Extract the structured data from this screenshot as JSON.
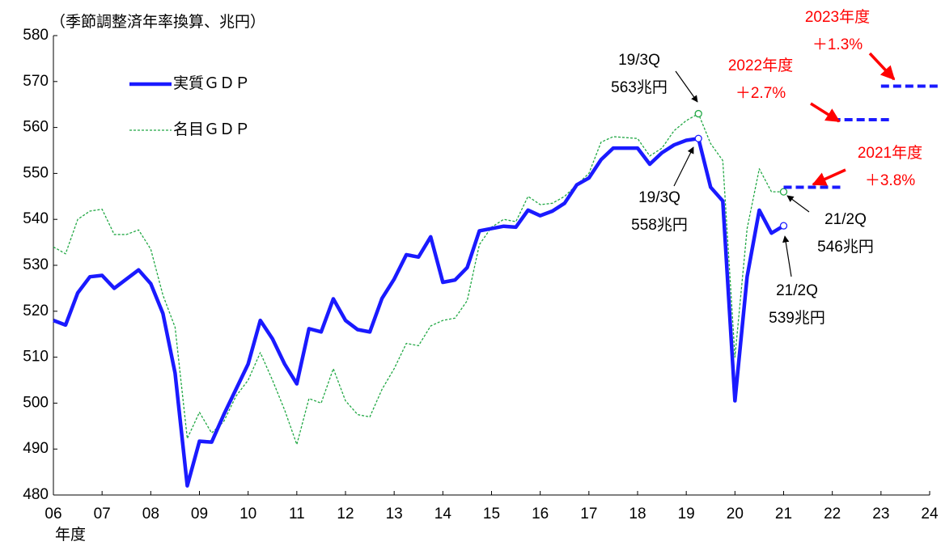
{
  "chart_data": {
    "type": "line",
    "y_label": "（季節調整済年率換算、兆円）",
    "x_label": "年度",
    "xlim": [
      6,
      24
    ],
    "xticks": [
      {
        "value": 6,
        "label": "06"
      },
      {
        "value": 7,
        "label": "07"
      },
      {
        "value": 8,
        "label": "08"
      },
      {
        "value": 9,
        "label": "09"
      },
      10,
      11,
      12,
      13,
      14,
      15,
      16,
      17,
      18,
      19,
      20,
      21,
      22,
      23,
      24
    ],
    "ylim": [
      480,
      580
    ],
    "yticks": [
      480,
      490,
      500,
      510,
      520,
      530,
      540,
      550,
      560,
      570,
      580
    ],
    "legend": "upper left",
    "x": [
      6,
      6.25,
      6.5,
      6.75,
      7,
      7.25,
      7.5,
      7.75,
      8,
      8.25,
      8.5,
      8.75,
      9,
      9.25,
      9.5,
      9.75,
      10,
      10.25,
      10.5,
      10.75,
      11,
      11.25,
      11.5,
      11.75,
      12,
      12.25,
      12.5,
      12.75,
      13,
      13.25,
      13.5,
      13.75,
      14,
      14.25,
      14.5,
      14.75,
      15,
      15.25,
      15.5,
      15.75,
      16,
      16.25,
      16.5,
      16.75,
      17,
      17.25,
      17.5,
      17.75,
      18,
      18.25,
      18.5,
      18.75,
      19,
      19.25,
      19.5,
      19.75,
      20,
      20.25,
      20.5,
      20.75,
      21
    ],
    "series": [
      {
        "name": "実質ＧＤＰ",
        "color": "#1a1aff",
        "style": "solid",
        "values": [
          518,
          517,
          524,
          527.5,
          527.8,
          525,
          527,
          529,
          526,
          519.5,
          506.5,
          482,
          491.7,
          491.5,
          497.5,
          503,
          508.5,
          518,
          514,
          508.5,
          504.2,
          516.2,
          515.5,
          522.7,
          518,
          516,
          515.5,
          522.8,
          527,
          532.3,
          531.8,
          536.2,
          526.3,
          526.8,
          529.5,
          537.5,
          538,
          538.5,
          538.3,
          542,
          540.8,
          541.8,
          543.5,
          547.5,
          549,
          553,
          555.5,
          555.5,
          555.5,
          552,
          554.5,
          556.2,
          557.2,
          557.6,
          547,
          544,
          500.5,
          527.5,
          542,
          537,
          538.6
        ]
      },
      {
        "name": "名目ＧＤＰ",
        "color": "#22a845",
        "style": "dashed",
        "values": [
          534,
          532.5,
          540,
          541.8,
          542.2,
          536.7,
          536.7,
          537.7,
          533.5,
          523.5,
          516.5,
          492.3,
          498,
          493.5,
          496,
          501.5,
          505,
          511,
          505,
          498.5,
          491,
          501,
          500,
          507.5,
          500.5,
          497.5,
          497,
          503,
          507.5,
          513,
          512.5,
          516.8,
          518,
          518.5,
          522.3,
          534.5,
          538.3,
          540,
          539.5,
          545,
          543.2,
          543.5,
          545,
          547.5,
          550,
          556.8,
          558,
          557.8,
          557.6,
          553.8,
          555.5,
          559.3,
          561.5,
          563,
          556.5,
          552.8,
          510,
          538,
          551,
          546,
          546
        ]
      }
    ],
    "forecasts": [
      {
        "lines": [
          "2021年度",
          "＋3.8%"
        ],
        "x": [
          21,
          22.2
        ],
        "value": 547
      },
      {
        "lines": [
          "2022年度",
          "＋2.7%"
        ],
        "x": [
          22,
          23.2
        ],
        "value": 561.7
      },
      {
        "lines": [
          "2023年度",
          "＋1.3%"
        ],
        "x": [
          23,
          24.2
        ],
        "value": 569
      }
    ],
    "forecast_color": "#1a1aff",
    "forecast_label_color": "#ff0000",
    "annotations": [
      {
        "lines": [
          "19/3Q",
          "563兆円"
        ]
      },
      {
        "lines": [
          "19/3Q",
          "558兆円"
        ]
      },
      {
        "lines": [
          "21/2Q",
          "546兆円"
        ]
      },
      {
        "lines": [
          "21/2Q",
          "539兆円"
        ]
      }
    ]
  }
}
